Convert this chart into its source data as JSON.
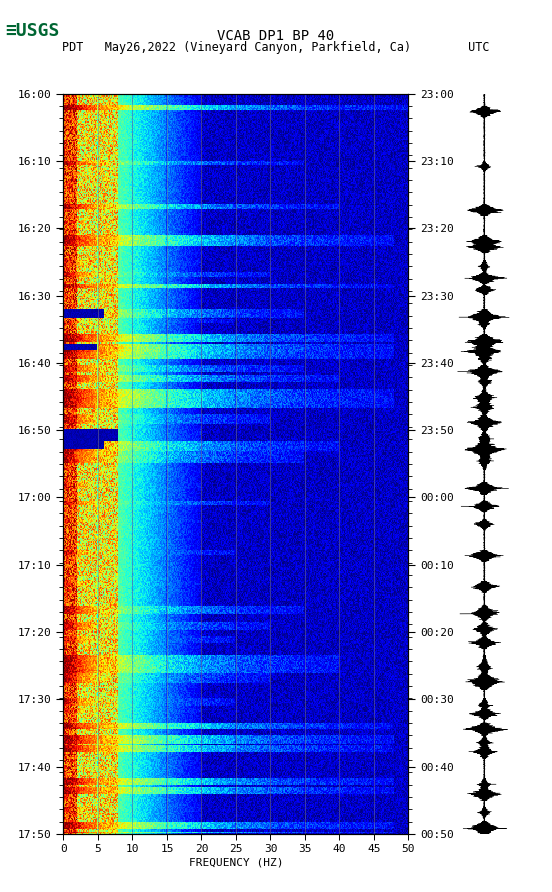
{
  "title_line1": "VCAB DP1 BP 40",
  "title_line2": "PDT   May26,2022 (Vineyard Canyon, Parkfield, Ca)        UTC",
  "left_yticks": [
    "16:00",
    "16:10",
    "16:20",
    "16:30",
    "16:40",
    "16:50",
    "17:00",
    "17:10",
    "17:20",
    "17:30",
    "17:40",
    "17:50"
  ],
  "right_yticks": [
    "23:00",
    "23:10",
    "23:20",
    "23:30",
    "23:40",
    "23:50",
    "00:00",
    "00:10",
    "00:20",
    "00:30",
    "00:40",
    "00:50"
  ],
  "xticks": [
    0,
    5,
    10,
    15,
    20,
    25,
    30,
    35,
    40,
    45,
    50
  ],
  "xlabel": "FREQUENCY (HZ)",
  "xmin": 0,
  "xmax": 50,
  "bg_color": "#ffffff",
  "grid_color": "#808080",
  "grid_linewidth": 0.6,
  "title_fontsize": 10,
  "tick_fontsize": 8,
  "label_fontsize": 8,
  "usgs_color": "#006633",
  "waveform_color": "#000000",
  "n_time": 600,
  "n_freq": 500
}
